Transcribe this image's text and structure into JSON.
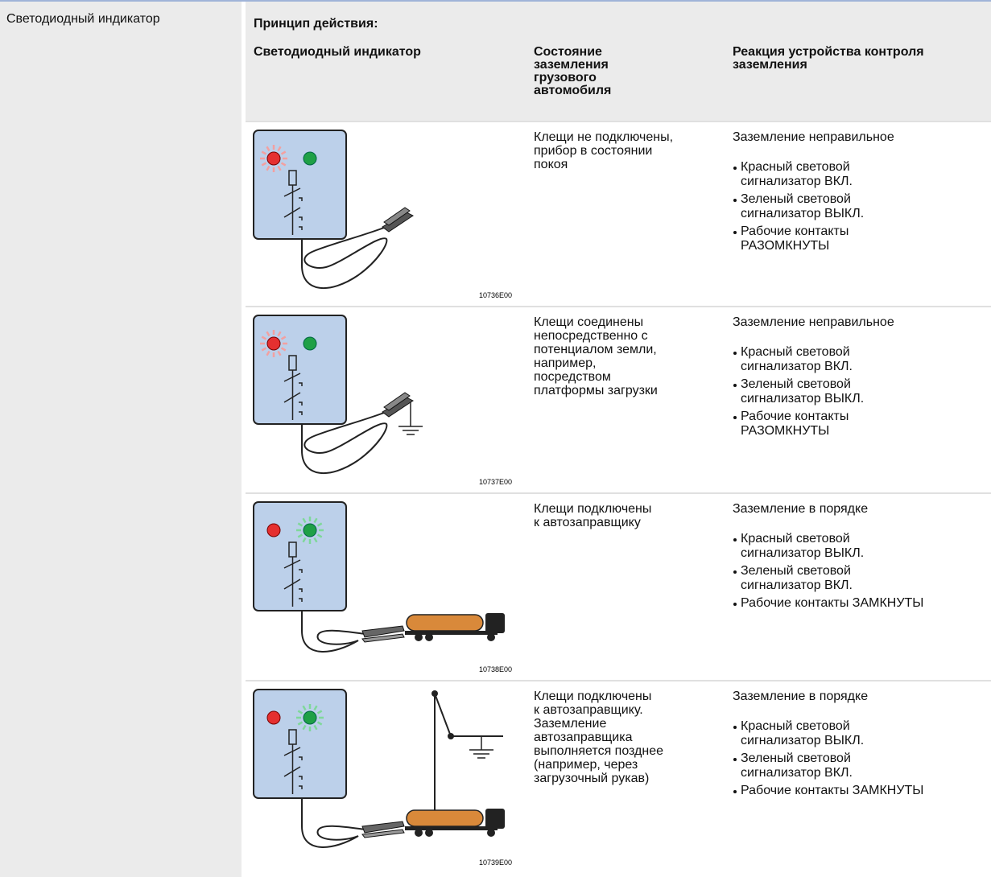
{
  "sidebar": {
    "label": "Светодиодный индикатор"
  },
  "section": {
    "title": "Принцип действия:",
    "headers": [
      [
        "Светодиодный индикатор"
      ],
      [
        "Состояние",
        "заземления",
        "грузового",
        "автомобиля"
      ],
      [
        "Реакция устройства контроля",
        "заземления"
      ]
    ],
    "rows": [
      {
        "figure": "10736E00",
        "state": [
          "Клещи не подключены,",
          "прибор в состоянии",
          "покоя"
        ],
        "reaction": "Заземление неправильное",
        "items": [
          [
            "Красный световой",
            "сигнализатор ВКЛ."
          ],
          [
            "Зеленый световой",
            "сигнализатор ВЫКЛ."
          ],
          [
            "Рабочие контакты",
            "РАЗОМКНУТЫ"
          ]
        ]
      },
      {
        "figure": "10737E00",
        "state": [
          "Клещи соединены",
          "непосредственно с",
          "потенциалом земли,",
          "например,",
          "посредством",
          "платформы загрузки"
        ],
        "reaction": "Заземление неправильное",
        "items": [
          [
            "Красный световой",
            "сигнализатор ВКЛ."
          ],
          [
            "Зеленый световой",
            "сигнализатор ВЫКЛ."
          ],
          [
            "Рабочие контакты",
            "РАЗОМКНУТЫ"
          ]
        ]
      },
      {
        "figure": "10738E00",
        "state": [
          "Клещи подключены",
          "к автозаправщику"
        ],
        "reaction": "Заземление в порядке",
        "items": [
          [
            "Красный световой",
            "сигнализатор ВЫКЛ."
          ],
          [
            "Зеленый световой",
            "сигнализатор ВКЛ."
          ],
          [
            "Рабочие контакты ЗАМКНУТЫ"
          ]
        ]
      },
      {
        "figure": "10739E00",
        "state": [
          "Клещи подключены",
          "к автозаправщику.",
          "Заземление",
          "автозаправщика",
          "выполняется позднее",
          "(например, через",
          "загрузочный рукав)"
        ],
        "reaction": "Заземление в порядке",
        "items": [
          [
            "Красный световой",
            "сигнализатор ВЫКЛ."
          ],
          [
            "Зеленый световой",
            "сигнализатор ВКЛ."
          ],
          [
            "Рабочие контакты ЗАМКНУТЫ"
          ]
        ]
      }
    ]
  }
}
